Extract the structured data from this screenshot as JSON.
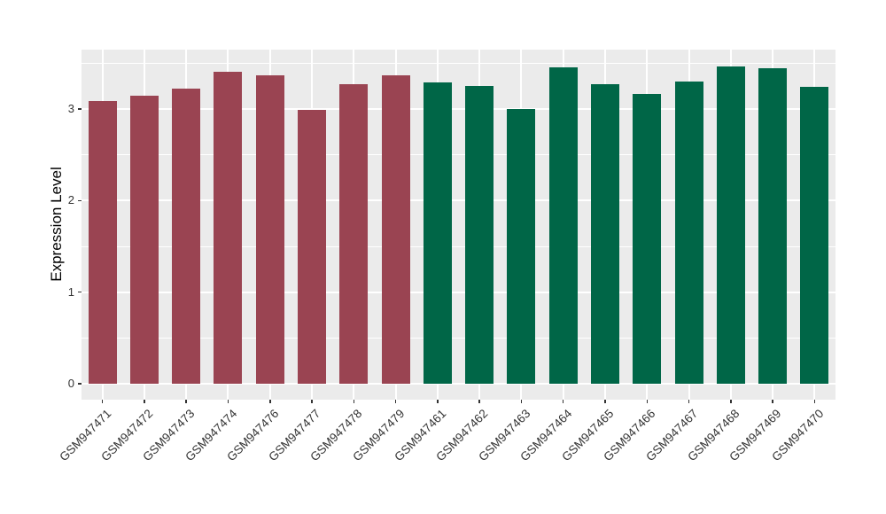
{
  "chart_data": {
    "type": "bar",
    "title": "",
    "xlabel": "",
    "ylabel": "Expression Level",
    "categories": [
      "GSM947471",
      "GSM947472",
      "GSM947473",
      "GSM947474",
      "GSM947476",
      "GSM947477",
      "GSM947478",
      "GSM947479",
      "GSM947461",
      "GSM947462",
      "GSM947463",
      "GSM947464",
      "GSM947465",
      "GSM947466",
      "GSM947467",
      "GSM947468",
      "GSM947469",
      "GSM947470"
    ],
    "values": [
      3.09,
      3.15,
      3.22,
      3.41,
      3.37,
      2.99,
      3.27,
      3.37,
      3.29,
      3.25,
      3.0,
      3.46,
      3.27,
      3.17,
      3.3,
      3.47,
      3.45,
      3.24
    ],
    "bar_groups": [
      0,
      0,
      0,
      0,
      0,
      0,
      0,
      0,
      1,
      1,
      1,
      1,
      1,
      1,
      1,
      1,
      1,
      1
    ],
    "group_colors": [
      "#9A4452",
      "#006647"
    ],
    "yticks": [
      0,
      1,
      2,
      3
    ],
    "minor_gridlines": [
      0.5,
      1.5,
      2.5,
      3.5
    ],
    "ylim": [
      -0.175,
      3.65
    ],
    "grid": true,
    "legend": false,
    "colors": {
      "panel_background": "#EBEBEB",
      "gridline": "#FFFFFF",
      "axis_text": "#333333",
      "axis_title": "#000000",
      "figure_background": "#FFFFFF"
    }
  }
}
